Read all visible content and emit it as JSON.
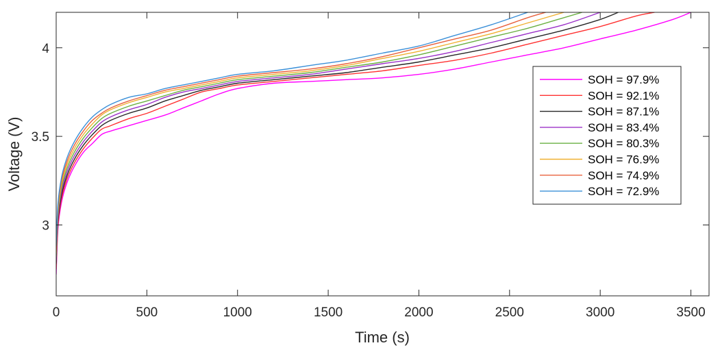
{
  "chart_data": {
    "type": "line",
    "title": "",
    "xlabel": "Time (s)",
    "ylabel": "Voltage (V)",
    "xlim": [
      0,
      3600
    ],
    "ylim": [
      2.6,
      4.2
    ],
    "xticks": [
      0,
      500,
      1000,
      1500,
      2000,
      2500,
      3000,
      3500
    ],
    "yticks": [
      3,
      3.5,
      4
    ],
    "xtick_labels": [
      "0",
      "500",
      "1000",
      "1500",
      "2000",
      "2500",
      "3000",
      "3500"
    ],
    "ytick_labels": [
      "3",
      "3.5",
      "4"
    ],
    "grid": false,
    "legend_position": "right",
    "series": [
      {
        "name": "SOH = 97.9%",
        "color": "#ff00ff",
        "x": [
          0,
          10,
          30,
          60,
          100,
          150,
          200,
          250,
          300,
          400,
          500,
          600,
          700,
          800,
          900,
          1000,
          1200,
          1400,
          1600,
          1800,
          2000,
          2200,
          2400,
          2600,
          2800,
          3000,
          3200,
          3400,
          3500
        ],
        "y": [
          2.72,
          2.98,
          3.13,
          3.24,
          3.33,
          3.41,
          3.46,
          3.51,
          3.53,
          3.56,
          3.59,
          3.62,
          3.66,
          3.7,
          3.74,
          3.77,
          3.8,
          3.81,
          3.82,
          3.83,
          3.85,
          3.88,
          3.92,
          3.96,
          4.0,
          4.05,
          4.1,
          4.16,
          4.2
        ]
      },
      {
        "name": "SOH = 92.1%",
        "color": "#ff3030",
        "x": [
          0,
          10,
          30,
          60,
          100,
          150,
          200,
          250,
          300,
          400,
          500,
          600,
          700,
          800,
          900,
          1000,
          1200,
          1400,
          1600,
          1800,
          2000,
          2200,
          2400,
          2600,
          2800,
          3000,
          3200,
          3300
        ],
        "y": [
          2.75,
          3.0,
          3.15,
          3.26,
          3.35,
          3.43,
          3.49,
          3.54,
          3.56,
          3.6,
          3.63,
          3.67,
          3.71,
          3.75,
          3.77,
          3.79,
          3.81,
          3.83,
          3.85,
          3.87,
          3.9,
          3.93,
          3.97,
          4.02,
          4.07,
          4.12,
          4.18,
          4.2
        ]
      },
      {
        "name": "SOH = 87.1%",
        "color": "#262626",
        "x": [
          0,
          10,
          30,
          60,
          100,
          150,
          200,
          250,
          300,
          400,
          500,
          600,
          700,
          800,
          900,
          1000,
          1200,
          1400,
          1600,
          1800,
          2000,
          2200,
          2400,
          2600,
          2800,
          3000,
          3100
        ],
        "y": [
          2.78,
          3.02,
          3.17,
          3.28,
          3.37,
          3.45,
          3.51,
          3.56,
          3.59,
          3.63,
          3.66,
          3.7,
          3.73,
          3.76,
          3.78,
          3.8,
          3.82,
          3.84,
          3.86,
          3.89,
          3.92,
          3.96,
          4.0,
          4.05,
          4.1,
          4.16,
          4.2
        ]
      },
      {
        "name": "SOH = 83.4%",
        "color": "#9b30c8",
        "x": [
          0,
          10,
          30,
          60,
          100,
          150,
          200,
          250,
          300,
          400,
          500,
          600,
          700,
          800,
          900,
          1000,
          1200,
          1400,
          1600,
          1800,
          2000,
          2200,
          2400,
          2600,
          2800,
          3000
        ],
        "y": [
          2.8,
          3.04,
          3.19,
          3.3,
          3.39,
          3.47,
          3.53,
          3.58,
          3.61,
          3.65,
          3.68,
          3.72,
          3.75,
          3.77,
          3.79,
          3.81,
          3.83,
          3.85,
          3.88,
          3.91,
          3.94,
          3.98,
          4.03,
          4.08,
          4.13,
          4.2
        ]
      },
      {
        "name": "SOH = 80.3%",
        "color": "#6ab042",
        "x": [
          0,
          10,
          30,
          60,
          100,
          150,
          200,
          250,
          300,
          400,
          500,
          600,
          700,
          800,
          900,
          1000,
          1200,
          1400,
          1600,
          1800,
          2000,
          2200,
          2400,
          2600,
          2800,
          2900
        ],
        "y": [
          2.82,
          3.06,
          3.21,
          3.32,
          3.41,
          3.49,
          3.55,
          3.6,
          3.63,
          3.67,
          3.7,
          3.73,
          3.76,
          3.78,
          3.8,
          3.82,
          3.84,
          3.86,
          3.89,
          3.92,
          3.96,
          4.01,
          4.06,
          4.11,
          4.17,
          4.2
        ]
      },
      {
        "name": "SOH = 76.9%",
        "color": "#f0b030",
        "x": [
          0,
          10,
          30,
          60,
          100,
          150,
          200,
          250,
          300,
          400,
          500,
          600,
          700,
          800,
          900,
          1000,
          1200,
          1400,
          1600,
          1800,
          2000,
          2200,
          2400,
          2600,
          2800
        ],
        "y": [
          2.84,
          3.08,
          3.23,
          3.34,
          3.43,
          3.51,
          3.57,
          3.62,
          3.65,
          3.69,
          3.72,
          3.75,
          3.77,
          3.79,
          3.81,
          3.83,
          3.85,
          3.87,
          3.9,
          3.94,
          3.98,
          4.03,
          4.08,
          4.14,
          4.2
        ]
      },
      {
        "name": "SOH = 74.9%",
        "color": "#e8603c",
        "x": [
          0,
          10,
          30,
          60,
          100,
          150,
          200,
          250,
          300,
          400,
          500,
          600,
          700,
          800,
          900,
          1000,
          1200,
          1400,
          1600,
          1800,
          2000,
          2200,
          2400,
          2600,
          2700
        ],
        "y": [
          2.86,
          3.1,
          3.25,
          3.36,
          3.45,
          3.53,
          3.59,
          3.63,
          3.66,
          3.7,
          3.73,
          3.76,
          3.78,
          3.8,
          3.82,
          3.84,
          3.86,
          3.88,
          3.91,
          3.95,
          4.0,
          4.05,
          4.1,
          4.17,
          4.2
        ]
      },
      {
        "name": "SOH = 72.9%",
        "color": "#3a8fd8",
        "x": [
          0,
          10,
          30,
          60,
          100,
          150,
          200,
          250,
          300,
          400,
          500,
          600,
          700,
          800,
          900,
          1000,
          1200,
          1400,
          1600,
          1800,
          2000,
          2200,
          2400,
          2600
        ],
        "y": [
          2.88,
          3.12,
          3.27,
          3.38,
          3.47,
          3.55,
          3.61,
          3.65,
          3.68,
          3.72,
          3.74,
          3.77,
          3.79,
          3.81,
          3.83,
          3.85,
          3.87,
          3.9,
          3.93,
          3.97,
          4.01,
          4.07,
          4.13,
          4.2
        ]
      }
    ]
  }
}
